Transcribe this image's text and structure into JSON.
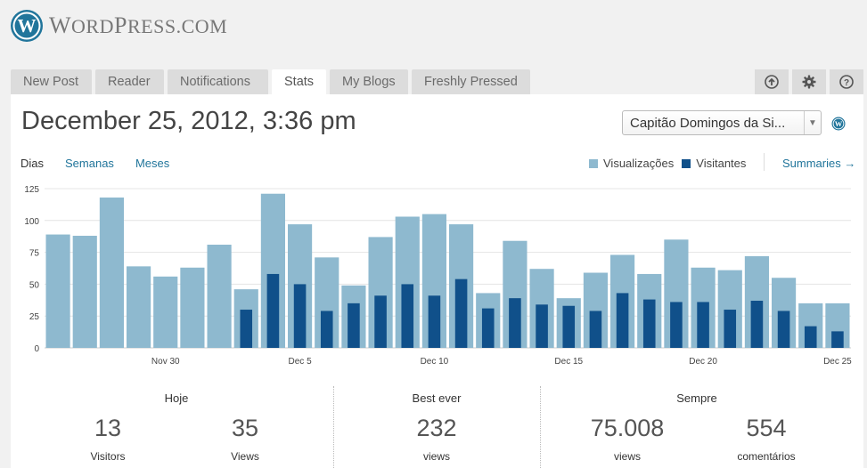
{
  "brand": {
    "name": "WordPress.com",
    "first": "W",
    "mid": "ORD",
    "p": "P",
    "rest": "RESS",
    "suffix": ".COM"
  },
  "tabs": [
    "New Post",
    "Reader",
    "Notifications",
    "Stats",
    "My Blogs",
    "Freshly Pressed"
  ],
  "active_tab": "Stats",
  "tab_icons": [
    "upload-icon",
    "gear-icon",
    "help-icon"
  ],
  "header": {
    "date": "December 25, 2012, 3:36 pm",
    "blog_select": "Capitão Domingos da Si..."
  },
  "period": {
    "options": [
      "Dias",
      "Semanas",
      "Meses"
    ],
    "active": "Dias"
  },
  "legend": {
    "views": "Visualizações",
    "visitors": "Visitantes"
  },
  "summaries": "Summaries →",
  "colors": {
    "views": "#8eb9cf",
    "visitors": "#10508a",
    "link": "#21759b"
  },
  "chart_data": {
    "type": "bar",
    "ylim": [
      0,
      125
    ],
    "yticks": [
      0,
      25,
      50,
      75,
      100,
      125
    ],
    "xtick_labels": [
      {
        "index": 4,
        "label": "Nov 30"
      },
      {
        "index": 9,
        "label": "Dec 5"
      },
      {
        "index": 14,
        "label": "Dec 10"
      },
      {
        "index": 19,
        "label": "Dec 15"
      },
      {
        "index": 24,
        "label": "Dec 20"
      },
      {
        "index": 29,
        "label": "Dec 25"
      }
    ],
    "series": [
      {
        "name": "Visualizações",
        "values": [
          89,
          88,
          118,
          64,
          56,
          63,
          81,
          46,
          121,
          97,
          71,
          49,
          87,
          103,
          105,
          97,
          43,
          84,
          62,
          39,
          59,
          73,
          58,
          85,
          63,
          61,
          72,
          55,
          35,
          35
        ]
      },
      {
        "name": "Visitantes",
        "values": [
          null,
          null,
          null,
          null,
          null,
          null,
          null,
          30,
          58,
          50,
          29,
          35,
          41,
          50,
          41,
          54,
          31,
          39,
          34,
          33,
          29,
          43,
          38,
          36,
          36,
          30,
          37,
          29,
          17,
          13
        ]
      }
    ]
  },
  "summary": {
    "today": {
      "label": "Hoje",
      "visitors": "13",
      "visitors_label": "Visitors",
      "views": "35",
      "views_label": "Views"
    },
    "best": {
      "label": "Best ever",
      "views": "232",
      "views_label": "views"
    },
    "always": {
      "label": "Sempre",
      "views": "75.008",
      "views_label": "views",
      "comments": "554",
      "comments_label": "comentários"
    }
  }
}
